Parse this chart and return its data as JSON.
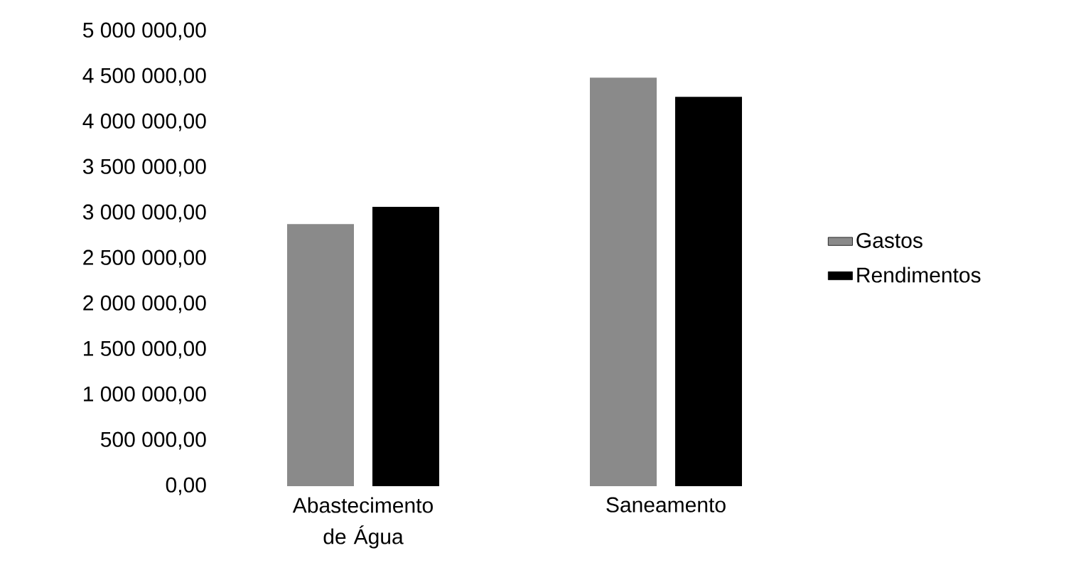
{
  "chart_data": {
    "type": "bar",
    "categories": [
      "Abastecimento de Água",
      "Saneamento"
    ],
    "series": [
      {
        "name": "Gastos",
        "color": "#8a8a8a",
        "values": [
          2880000,
          4490000
        ]
      },
      {
        "name": "Rendimentos",
        "color": "#000000",
        "values": [
          3070000,
          4280000
        ]
      }
    ],
    "ylim": [
      0,
      5000000
    ],
    "yticks": [
      {
        "value": 0,
        "label": "0,00"
      },
      {
        "value": 500000,
        "label": "500 000,00"
      },
      {
        "value": 1000000,
        "label": "1 000 000,00"
      },
      {
        "value": 1500000,
        "label": "1 500 000,00"
      },
      {
        "value": 2000000,
        "label": "2 000 000,00"
      },
      {
        "value": 2500000,
        "label": "2 500 000,00"
      },
      {
        "value": 3000000,
        "label": "3 000 000,00"
      },
      {
        "value": 3500000,
        "label": "3 500 000,00"
      },
      {
        "value": 4000000,
        "label": "4 000 000,00"
      },
      {
        "value": 4500000,
        "label": "4 500 000,00"
      },
      {
        "value": 5000000,
        "label": "5 000 000,00"
      }
    ],
    "grid": false,
    "legend": "right"
  }
}
